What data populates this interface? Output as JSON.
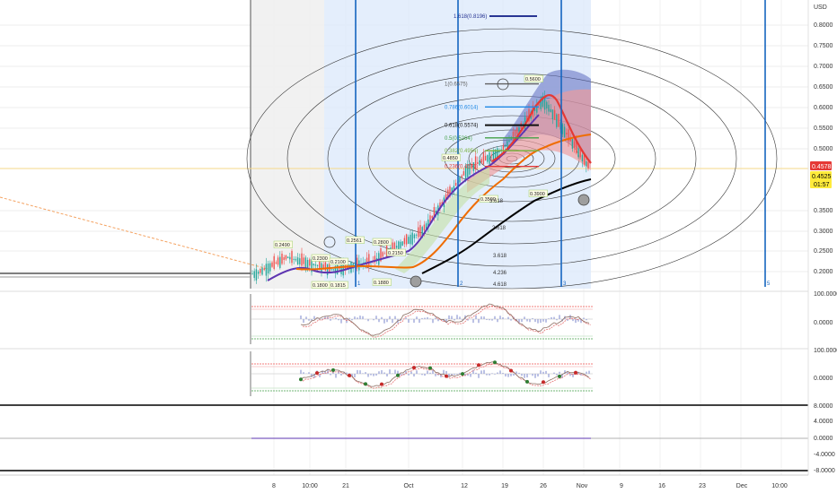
{
  "price_axis": {
    "unit": "USD",
    "ticks": [
      "0.8000",
      "0.7500",
      "0.7000",
      "0.6500",
      "0.6000",
      "0.5500",
      "0.5000",
      "0.3500",
      "0.3000",
      "0.2500",
      "0.2000"
    ],
    "tick_values": [
      0.8,
      0.75,
      0.7,
      0.65,
      0.6,
      0.55,
      0.5,
      0.35,
      0.3,
      0.25,
      0.2
    ],
    "price_tag": "0.4578",
    "price_tag_color": "#e53935",
    "badge_value": "0.4525",
    "badge_timer": "01:57",
    "badge_color": "#ffeb3b"
  },
  "osc1_axis": {
    "top": "100.0000",
    "mid": "0.0000"
  },
  "osc2_axis": {
    "top": "100.0000",
    "mid": "0.0000"
  },
  "osc3_axis": {
    "top": "8.0000",
    "upper": "4.0000",
    "mid": "0.0000",
    "lower": "-4.0000",
    "bottom": "-8.0000"
  },
  "time_axis": {
    "labels": [
      "8",
      "10:00",
      "21",
      "Oct",
      "12",
      "19",
      "26",
      "Nov",
      "9",
      "16",
      "23",
      "Dec",
      "10:00"
    ]
  },
  "cycle_labels": [
    "1",
    "2",
    "3",
    "5"
  ],
  "fib_levels": [
    {
      "label": "1.618(0.8196)",
      "color": "#283593",
      "value": 0.8196
    },
    {
      "label": "1(0.6575)",
      "color": "#616161",
      "value": 0.6575
    },
    {
      "label": "0.786(0.6014)",
      "color": "#1e88e5",
      "value": 0.6014
    },
    {
      "label": "0.618(0.5574)",
      "color": "#111111",
      "value": 0.5574
    },
    {
      "label": "0.5(0.5264)",
      "color": "#43a047",
      "value": 0.5264
    },
    {
      "label": "0.382(0.4954)",
      "color": "#7cb342",
      "value": 0.4954
    },
    {
      "label": "0.236(0.4571)",
      "color": "#e53935",
      "value": 0.4571
    }
  ],
  "circle_fib_labels": [
    "3.618",
    "2.618",
    "3.618",
    "4.236",
    "4.618"
  ],
  "point_labels": [
    "0.2490",
    "0.2300",
    "0.2100",
    "0.2561",
    "0.2800",
    "0.2150",
    "0.1800",
    "0.1815",
    "0.1880",
    "0.4850",
    "0.5600",
    "0.3500",
    "0.3900"
  ],
  "indicator_colors": {
    "ma_purple": "#5e35b1",
    "ma_red": "#e53935",
    "ma_orange": "#ef6c00",
    "ma_black": "#000000",
    "band_blue": "#5c6bc0",
    "band_red": "#ef9a9a",
    "cycle_line": "#1565c0",
    "shade": "#dbe8fb"
  },
  "chart_data": {
    "type": "line",
    "series": [
      {
        "x": [
          "Sep 08",
          "Sep 14",
          "Sep 21",
          "Sep 28",
          "Oct 05",
          "Oct 12",
          "Oct 19",
          "Oct 26",
          "Nov 02"
        ],
        "values": [
          0.195,
          0.235,
          0.205,
          0.225,
          0.3,
          0.45,
          0.5,
          0.62,
          0.458
        ]
      }
    ],
    "ylim": [
      0.18,
      0.82
    ],
    "y_ticks": [
      0.2,
      0.25,
      0.3,
      0.35,
      0.5,
      0.55,
      0.6,
      0.65,
      0.7,
      0.75,
      0.8
    ],
    "x_tick_labels": [
      "8",
      "10:00",
      "21",
      "Oct",
      "12",
      "19",
      "26",
      "Nov",
      "9",
      "16",
      "23",
      "Dec",
      "10:00"
    ],
    "grid": true
  }
}
